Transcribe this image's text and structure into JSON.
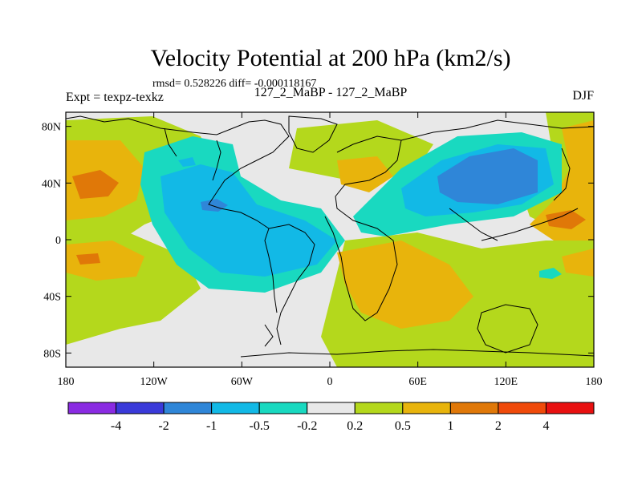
{
  "chart_data": {
    "type": "contour_map",
    "title": "Velocity Potential at 200 hPa (km2/s)",
    "stats_line": "rmsd= 0.528226 diff= -0.000118167",
    "left_label": "Expt = texpz-texkz",
    "center_label": "127_2_MaBP - 127_2_MaBP",
    "right_label": "DJF",
    "x_axis": {
      "range": [
        -180,
        180
      ],
      "tick_values": [
        -180,
        -120,
        -60,
        0,
        60,
        120,
        180
      ],
      "tick_labels": [
        "180",
        "120W",
        "60W",
        "0",
        "60E",
        "120E",
        "180"
      ]
    },
    "y_axis": {
      "range": [
        -90,
        90
      ],
      "tick_values": [
        80,
        40,
        0,
        -40,
        -80
      ],
      "tick_labels": [
        "80N",
        "40N",
        "0",
        "40S",
        "80S"
      ]
    },
    "colorbar": {
      "levels": [
        "-4",
        "-2",
        "-1",
        "-0.5",
        "-0.2",
        "0.2",
        "0.5",
        "1",
        "2",
        "4"
      ],
      "colors": [
        "#8a2be2",
        "#3a3ad9",
        "#2f86d8",
        "#12b9e6",
        "#19d9c0",
        "#e8e8e8",
        "#b4d81c",
        "#e8b40c",
        "#e07808",
        "#f04a0a",
        "#e81010"
      ]
    }
  }
}
